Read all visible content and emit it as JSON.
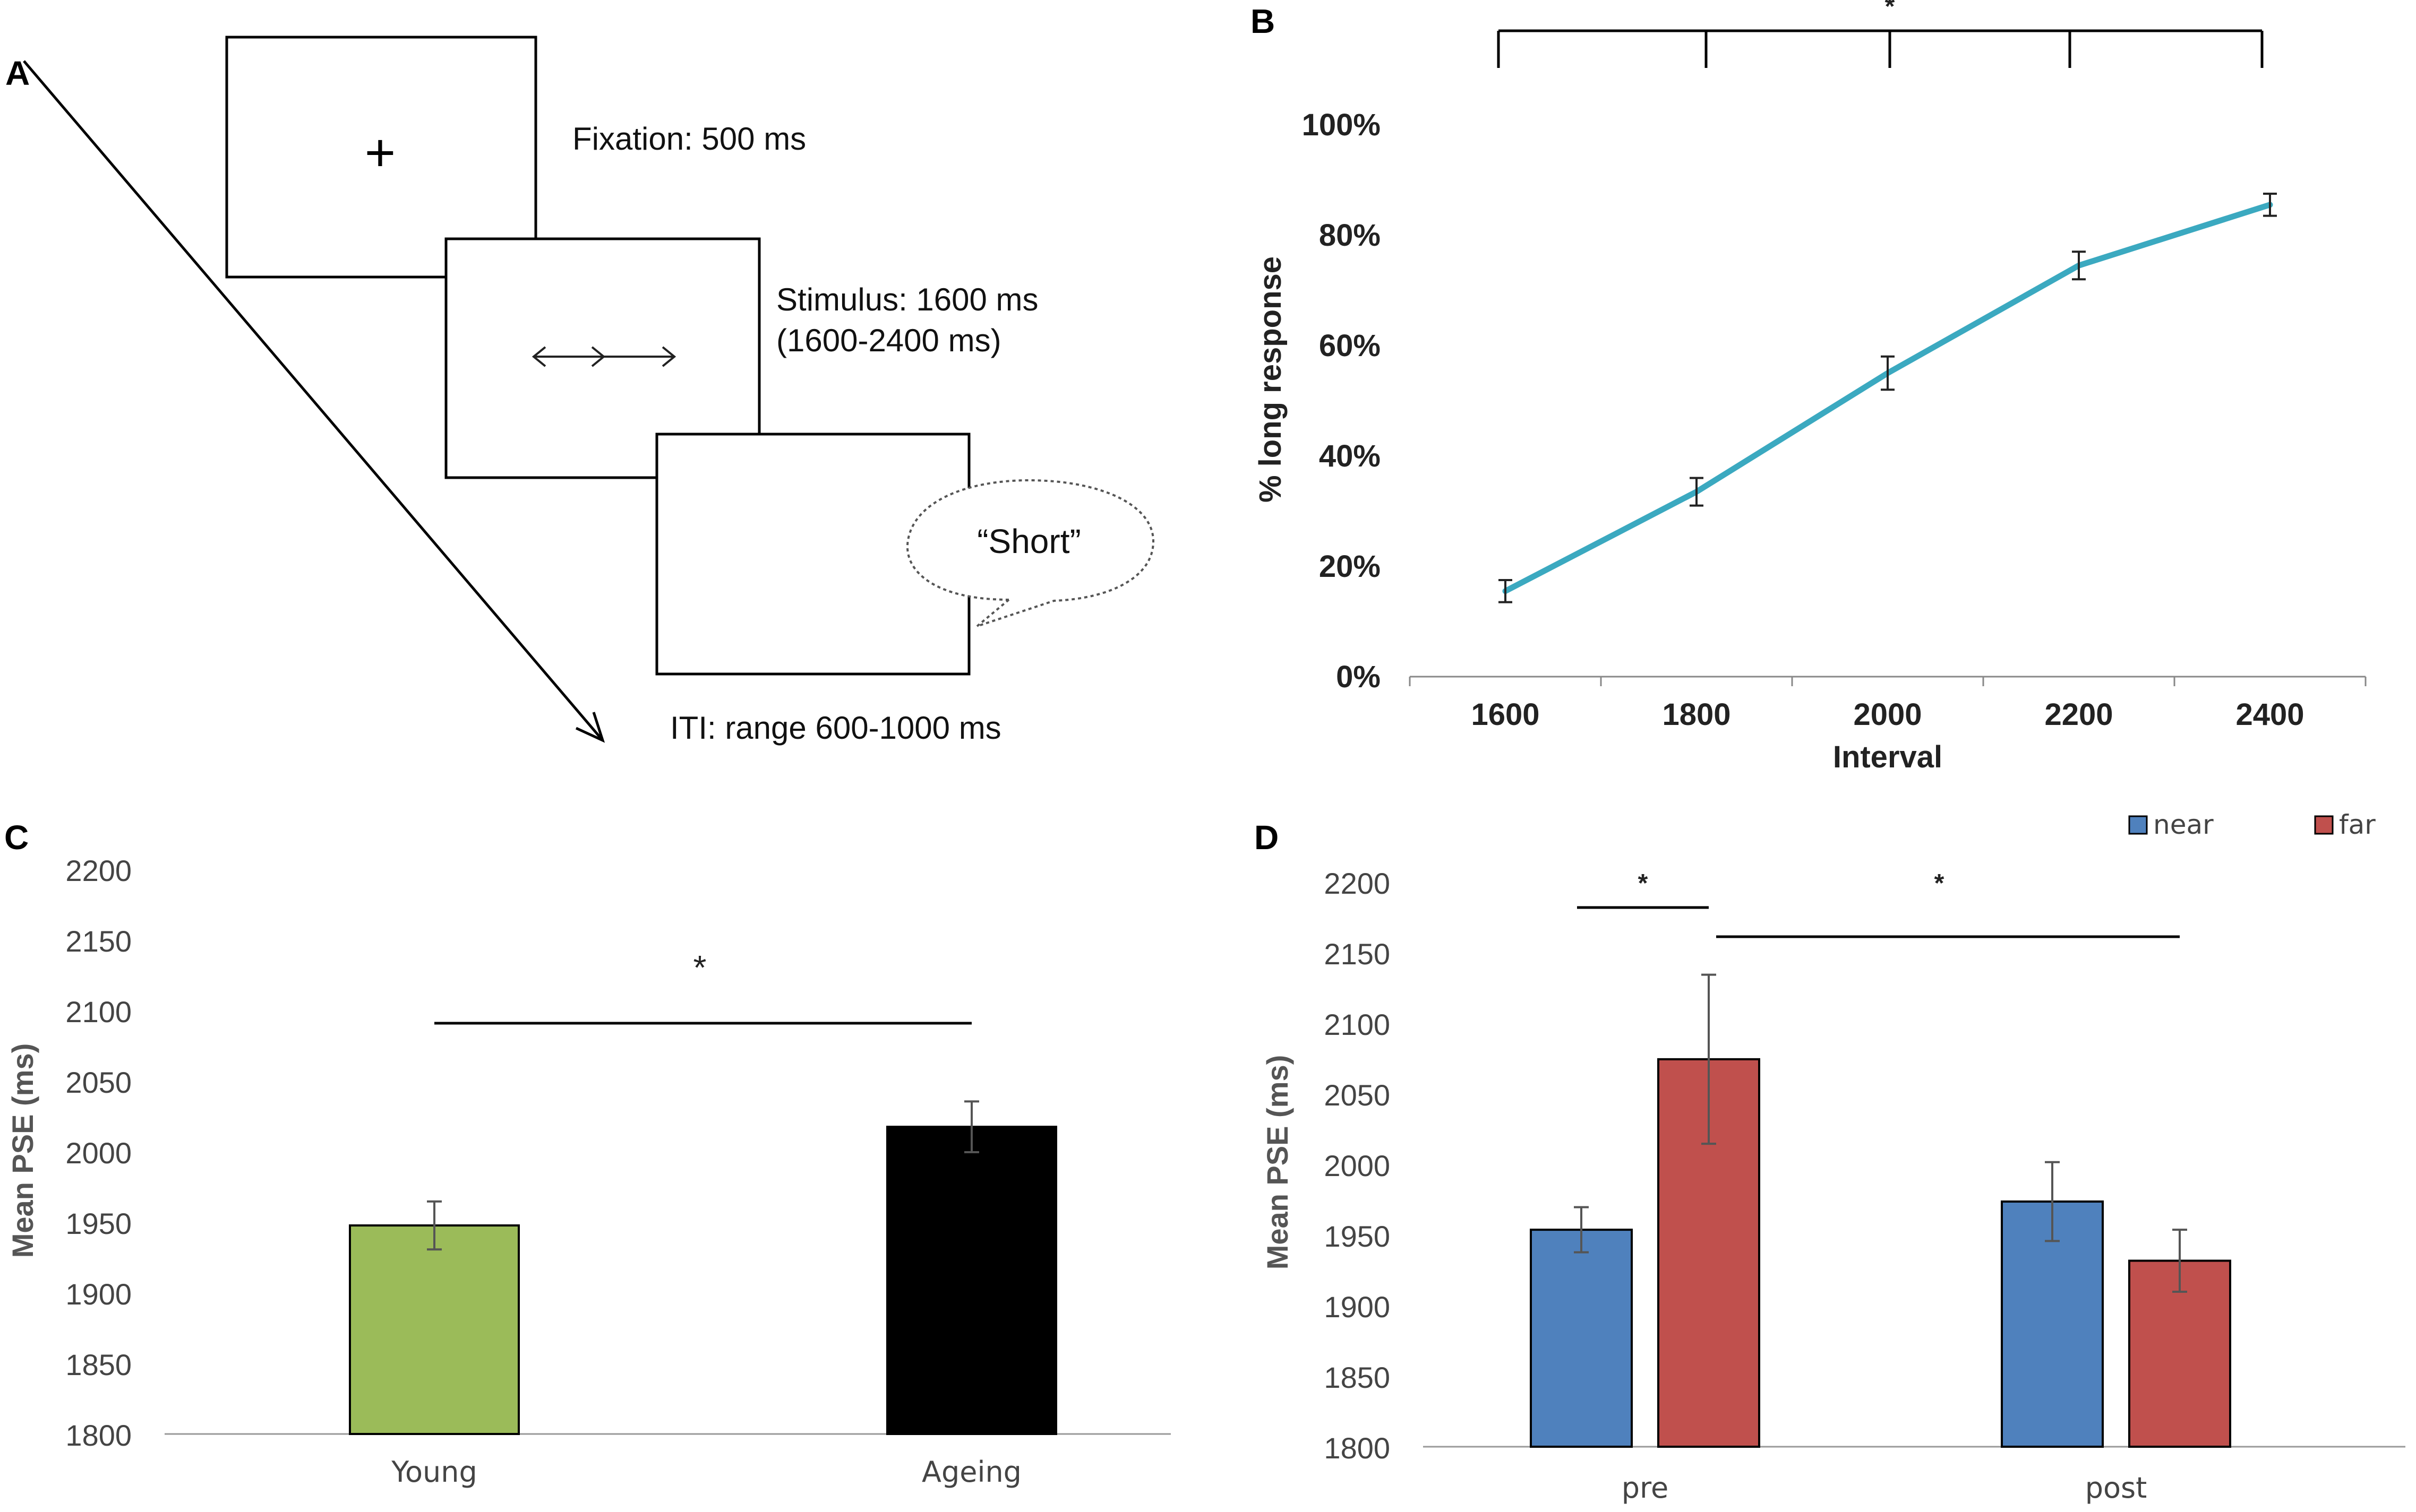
{
  "panel_labels": {
    "a": "A",
    "b": "B",
    "c": "C",
    "d": "D"
  },
  "panel_a": {
    "fixation_symbol": "+",
    "fixation_label": "Fixation: 500 ms",
    "stimulus_label_line1": "Stimulus: 1600 ms",
    "stimulus_label_line2": "(1600-2400 ms)",
    "response_text": "“Short”",
    "iti_label": "ITI: range 600-1000 ms"
  },
  "chart_data": [
    {
      "panel": "B",
      "type": "line",
      "title": "",
      "xlabel": "Interval",
      "ylabel": "% long response",
      "x": [
        1600,
        1800,
        2000,
        2200,
        2400
      ],
      "x_tick_labels": [
        "1600",
        "1800",
        "2000",
        "2200",
        "2400"
      ],
      "y_tick_labels": [
        "0%",
        "20%",
        "40%",
        "60%",
        "80%",
        "100%"
      ],
      "ylim": [
        0,
        100
      ],
      "series": [
        {
          "name": "% long response",
          "values": [
            15.5,
            33.5,
            55.0,
            74.5,
            85.5
          ],
          "errors": [
            2.0,
            2.5,
            3.0,
            2.5,
            2.0
          ],
          "color": "#3ba9c0"
        }
      ],
      "significance": {
        "symbol": "*",
        "spans": [
          1600,
          2400
        ]
      }
    },
    {
      "panel": "C",
      "type": "bar",
      "title": "",
      "xlabel": "",
      "ylabel": "Mean PSE (ms)",
      "categories": [
        "Young",
        "Ageing"
      ],
      "values": [
        1948,
        2018
      ],
      "errors": [
        17,
        18
      ],
      "colors": [
        "#9bbb59",
        "#000000"
      ],
      "ylim": [
        1800,
        2200
      ],
      "y_tick_labels": [
        "1800",
        "1850",
        "1900",
        "1950",
        "2000",
        "2050",
        "2100",
        "2150",
        "2200"
      ],
      "significance": {
        "symbol": "*",
        "between": [
          "Young",
          "Ageing"
        ]
      }
    },
    {
      "panel": "D",
      "type": "bar",
      "title": "",
      "xlabel": "",
      "ylabel": "Mean PSE (ms)",
      "categories": [
        "pre",
        "post"
      ],
      "series": [
        {
          "name": "near",
          "values": [
            1954,
            1974
          ],
          "errors": [
            16,
            28
          ],
          "color": "#4f81bd"
        },
        {
          "name": "far",
          "values": [
            2075,
            1932
          ],
          "errors": [
            60,
            22
          ],
          "color": "#c0504d"
        }
      ],
      "ylim": [
        1800,
        2200
      ],
      "y_tick_labels": [
        "1800",
        "1850",
        "1900",
        "1950",
        "2000",
        "2050",
        "2100",
        "2150",
        "2200"
      ],
      "legend": "top-right",
      "significance": [
        {
          "symbol": "*",
          "between": "pre near vs pre far"
        },
        {
          "symbol": "*",
          "between": "pre far vs post"
        }
      ]
    }
  ]
}
